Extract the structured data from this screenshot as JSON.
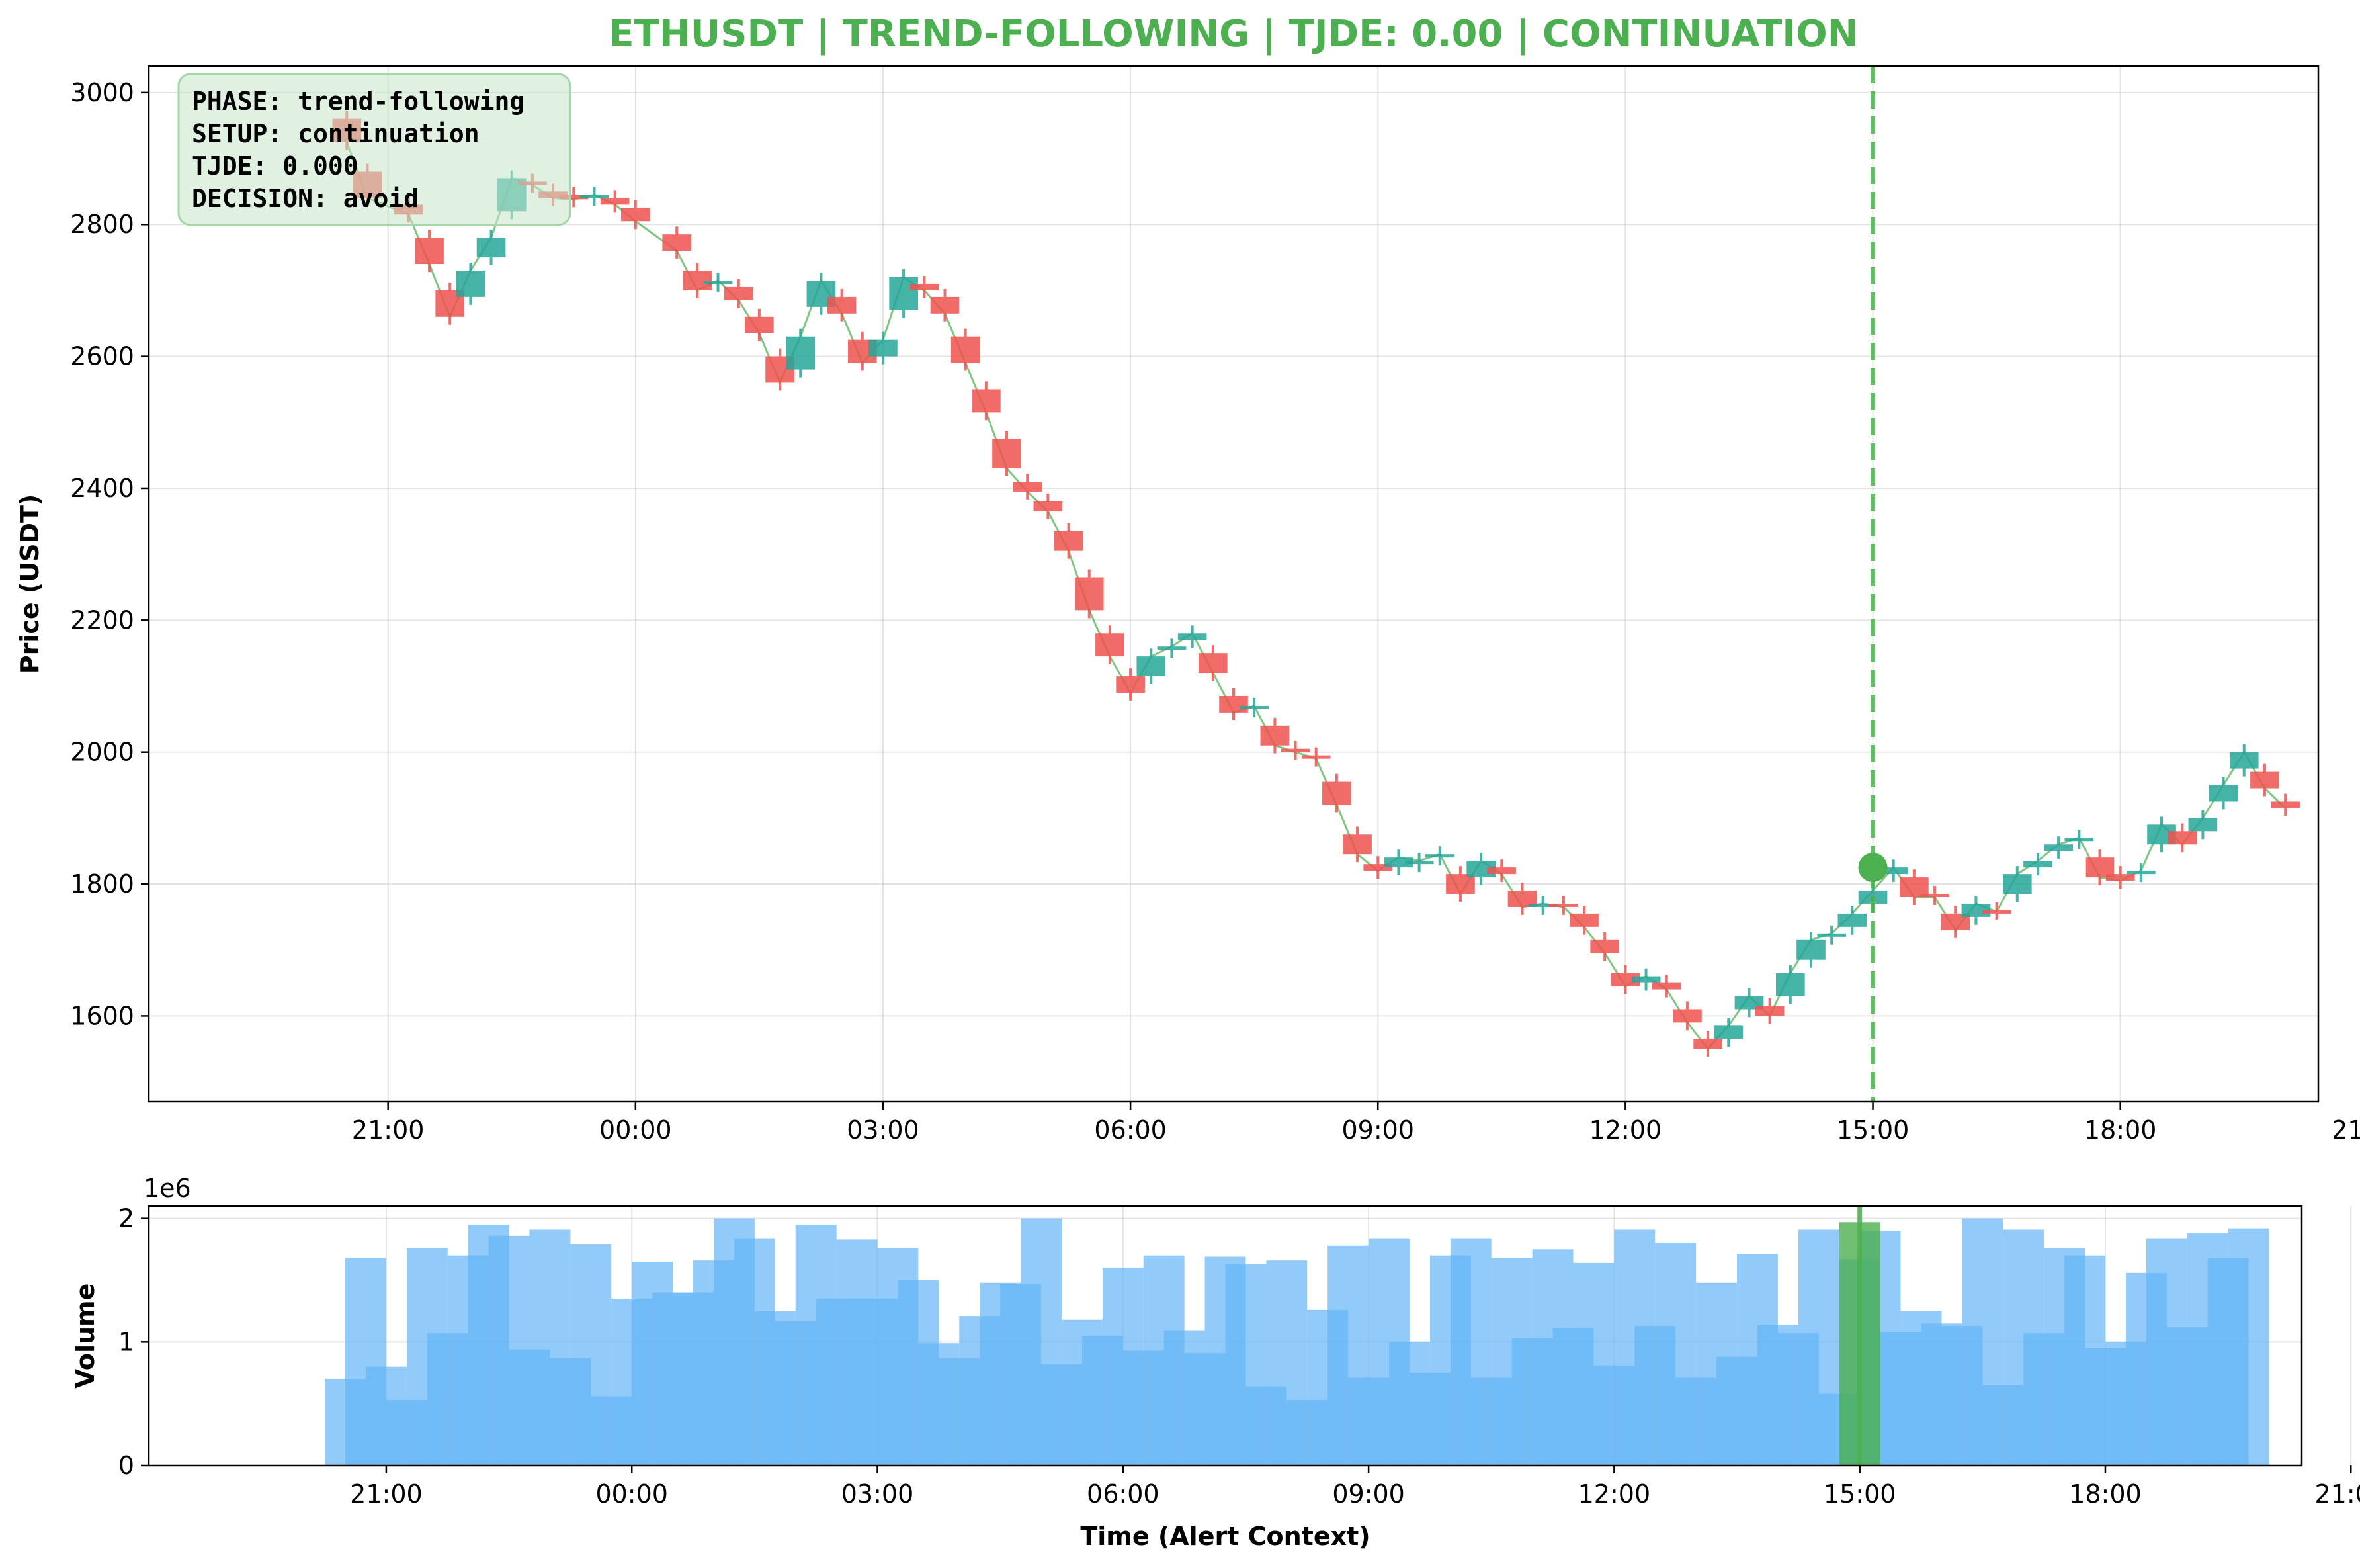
{
  "chart_data": [
    {
      "type": "candlestick",
      "title": "ETHUSDT | TREND-FOLLOWING | TJDE: 0.00 | CONTINUATION",
      "ylabel": "Price (USDT)",
      "xlabel": "",
      "ylim": [
        1470,
        3040
      ],
      "yticks": [
        1600,
        1800,
        2000,
        2200,
        2400,
        2600,
        2800,
        3000
      ],
      "xlim_hours": [
        -2.9,
        23.4
      ],
      "xtick_labels": [
        "21:00",
        "00:00",
        "03:00",
        "06:00",
        "09:00",
        "12:00",
        "15:00",
        "18:00",
        "21:00"
      ],
      "bar_width_hours": 0.35,
      "grid": true,
      "up_color": "#26a69a",
      "down_color": "#ef5350",
      "line_color": "#4caf50",
      "alert_time": "15:00",
      "alert_price": 1825,
      "alert_color": "#4caf50",
      "annotation": {
        "phase": "PHASE: trend-following",
        "setup": "SETUP: continuation",
        "tjde": "TJDE: 0.000",
        "decision": "DECISION: avoid"
      },
      "candles": [
        {
          "t": -0.5,
          "o": 2960,
          "c": 2925
        },
        {
          "t": -0.25,
          "o": 2880,
          "c": 2840
        },
        {
          "t": 0.25,
          "o": 2830,
          "c": 2815
        },
        {
          "t": 0.5,
          "o": 2780,
          "c": 2740
        },
        {
          "t": 0.75,
          "o": 2700,
          "c": 2660
        },
        {
          "t": 1.0,
          "o": 2690,
          "c": 2730
        },
        {
          "t": 1.25,
          "o": 2750,
          "c": 2780
        },
        {
          "t": 1.5,
          "o": 2820,
          "c": 2870
        },
        {
          "t": 1.75,
          "o": 2865,
          "c": 2860
        },
        {
          "t": 2.0,
          "o": 2850,
          "c": 2840
        },
        {
          "t": 2.25,
          "o": 2845,
          "c": 2838
        },
        {
          "t": 2.5,
          "o": 2840,
          "c": 2845
        },
        {
          "t": 2.75,
          "o": 2840,
          "c": 2830
        },
        {
          "t": 3.0,
          "o": 2825,
          "c": 2805
        },
        {
          "t": 3.5,
          "o": 2785,
          "c": 2760
        },
        {
          "t": 3.75,
          "o": 2730,
          "c": 2700
        },
        {
          "t": 4.0,
          "o": 2710,
          "c": 2715
        },
        {
          "t": 4.25,
          "o": 2705,
          "c": 2685
        },
        {
          "t": 4.5,
          "o": 2660,
          "c": 2635
        },
        {
          "t": 4.75,
          "o": 2600,
          "c": 2560
        },
        {
          "t": 5.0,
          "o": 2580,
          "c": 2630
        },
        {
          "t": 5.25,
          "o": 2675,
          "c": 2715
        },
        {
          "t": 5.5,
          "o": 2690,
          "c": 2665
        },
        {
          "t": 5.75,
          "o": 2625,
          "c": 2590
        },
        {
          "t": 6.0,
          "o": 2600,
          "c": 2625
        },
        {
          "t": 6.25,
          "o": 2670,
          "c": 2720
        },
        {
          "t": 6.5,
          "o": 2710,
          "c": 2700
        },
        {
          "t": 6.75,
          "o": 2690,
          "c": 2665
        },
        {
          "t": 7.0,
          "o": 2630,
          "c": 2590
        },
        {
          "t": 7.25,
          "o": 2550,
          "c": 2515
        },
        {
          "t": 7.5,
          "o": 2475,
          "c": 2430
        },
        {
          "t": 7.75,
          "o": 2410,
          "c": 2395
        },
        {
          "t": 8.0,
          "o": 2380,
          "c": 2365
        },
        {
          "t": 8.25,
          "o": 2335,
          "c": 2305
        },
        {
          "t": 8.5,
          "o": 2265,
          "c": 2215
        },
        {
          "t": 8.75,
          "o": 2180,
          "c": 2145
        },
        {
          "t": 9.0,
          "o": 2115,
          "c": 2090
        },
        {
          "t": 9.25,
          "o": 2115,
          "c": 2145
        },
        {
          "t": 9.5,
          "o": 2155,
          "c": 2160
        },
        {
          "t": 9.75,
          "o": 2170,
          "c": 2180
        },
        {
          "t": 10.0,
          "o": 2150,
          "c": 2120
        },
        {
          "t": 10.25,
          "o": 2085,
          "c": 2060
        },
        {
          "t": 10.5,
          "o": 2065,
          "c": 2070
        },
        {
          "t": 10.75,
          "o": 2040,
          "c": 2010
        },
        {
          "t": 11.0,
          "o": 2005,
          "c": 2000
        },
        {
          "t": 11.25,
          "o": 1995,
          "c": 1990
        },
        {
          "t": 11.5,
          "o": 1955,
          "c": 1920
        },
        {
          "t": 11.75,
          "o": 1875,
          "c": 1845
        },
        {
          "t": 12.0,
          "o": 1830,
          "c": 1820
        },
        {
          "t": 12.25,
          "o": 1825,
          "c": 1840
        },
        {
          "t": 12.5,
          "o": 1830,
          "c": 1835
        },
        {
          "t": 12.75,
          "o": 1840,
          "c": 1845
        },
        {
          "t": 13.0,
          "o": 1815,
          "c": 1785
        },
        {
          "t": 13.25,
          "o": 1810,
          "c": 1835
        },
        {
          "t": 13.5,
          "o": 1825,
          "c": 1815
        },
        {
          "t": 13.75,
          "o": 1790,
          "c": 1765
        },
        {
          "t": 14.0,
          "o": 1765,
          "c": 1770
        },
        {
          "t": 14.25,
          "o": 1770,
          "c": 1765
        },
        {
          "t": 14.5,
          "o": 1755,
          "c": 1735
        },
        {
          "t": 14.75,
          "o": 1715,
          "c": 1695
        },
        {
          "t": 15.0,
          "o": 1665,
          "c": 1645
        },
        {
          "t": 15.25,
          "o": 1650,
          "c": 1660
        },
        {
          "t": 15.5,
          "o": 1650,
          "c": 1640
        },
        {
          "t": 15.75,
          "o": 1610,
          "c": 1590
        },
        {
          "t": 16.0,
          "o": 1565,
          "c": 1550
        },
        {
          "t": 16.25,
          "o": 1565,
          "c": 1585
        },
        {
          "t": 16.5,
          "o": 1610,
          "c": 1630
        },
        {
          "t": 16.75,
          "o": 1615,
          "c": 1600
        },
        {
          "t": 17.0,
          "o": 1630,
          "c": 1665
        },
        {
          "t": 17.25,
          "o": 1685,
          "c": 1715
        },
        {
          "t": 17.5,
          "o": 1720,
          "c": 1725
        },
        {
          "t": 17.75,
          "o": 1735,
          "c": 1755
        },
        {
          "t": 18.0,
          "o": 1770,
          "c": 1790
        },
        {
          "t": 18.25,
          "o": 1815,
          "c": 1825
        },
        {
          "t": 18.5,
          "o": 1810,
          "c": 1780
        },
        {
          "t": 18.75,
          "o": 1785,
          "c": 1780
        },
        {
          "t": 19.0,
          "o": 1755,
          "c": 1730
        },
        {
          "t": 19.25,
          "o": 1750,
          "c": 1770
        },
        {
          "t": 19.5,
          "o": 1760,
          "c": 1758
        },
        {
          "t": 19.75,
          "o": 1785,
          "c": 1815
        },
        {
          "t": 20.0,
          "o": 1825,
          "c": 1835
        },
        {
          "t": 20.25,
          "o": 1850,
          "c": 1860
        },
        {
          "t": 20.5,
          "o": 1865,
          "c": 1870
        },
        {
          "t": 20.75,
          "o": 1840,
          "c": 1810
        },
        {
          "t": 21.0,
          "o": 1815,
          "c": 1805
        },
        {
          "t": 21.25,
          "o": 1815,
          "c": 1820
        },
        {
          "t": 21.5,
          "o": 1860,
          "c": 1890
        },
        {
          "t": 21.75,
          "o": 1880,
          "c": 1860
        },
        {
          "t": 22.0,
          "o": 1880,
          "c": 1900
        },
        {
          "t": 22.25,
          "o": 1925,
          "c": 1950
        },
        {
          "t": 22.5,
          "o": 1975,
          "c": 2000
        },
        {
          "t": 22.75,
          "o": 1970,
          "c": 1945
        },
        {
          "t": 23.0,
          "o": 1925,
          "c": 1915
        }
      ]
    },
    {
      "type": "bar",
      "title": "",
      "ylabel": "Volume",
      "xlabel": "Time (Alert Context)",
      "offset_label": "1e6",
      "ylim": [
        0,
        2.1
      ],
      "yticks": [
        0,
        1,
        2
      ],
      "xlim_hours": [
        -2.9,
        23.4
      ],
      "xtick_labels": [
        "21:00",
        "00:00",
        "03:00",
        "06:00",
        "09:00",
        "12:00",
        "15:00",
        "18:00",
        "21:00"
      ],
      "bar_width_hours": 0.5,
      "grid": true,
      "bar_color": "#64b5f6",
      "alert_bar_color": "#4caf50",
      "alert_time": "15:00",
      "alert_volume": 1.97,
      "volumes": [
        0.7,
        1.68,
        0.8,
        0.53,
        1.76,
        1.07,
        1.7,
        1.95,
        1.86,
        0.94,
        1.91,
        0.87,
        1.79,
        0.56,
        1.35,
        1.65,
        1.4,
        1.4,
        1.66,
        2.0,
        1.84,
        1.25,
        1.17,
        1.95,
        1.35,
        1.83,
        1.35,
        1.76,
        1.5,
        0.99,
        0.87,
        1.21,
        1.48,
        1.47,
        2.0,
        0.82,
        1.18,
        1.05,
        1.6,
        0.93,
        1.7,
        1.09,
        0.91,
        1.69,
        1.63,
        0.64,
        1.66,
        0.53,
        1.26,
        1.78,
        0.71,
        1.84,
        1.0,
        0.75,
        1.7,
        1.84,
        0.71,
        1.68,
        1.03,
        1.75,
        1.11,
        1.64,
        0.81,
        1.91,
        1.13,
        1.8,
        0.71,
        1.48,
        0.88,
        1.71,
        1.14,
        1.07,
        1.91,
        0.58,
        1.67,
        1.9,
        1.08,
        1.25,
        1.15,
        1.13,
        2.0,
        0.65,
        1.91,
        1.07,
        1.76,
        1.7,
        0.95,
        1.0,
        1.56,
        1.84,
        1.12,
        1.88,
        1.68,
        1.92
      ]
    }
  ]
}
